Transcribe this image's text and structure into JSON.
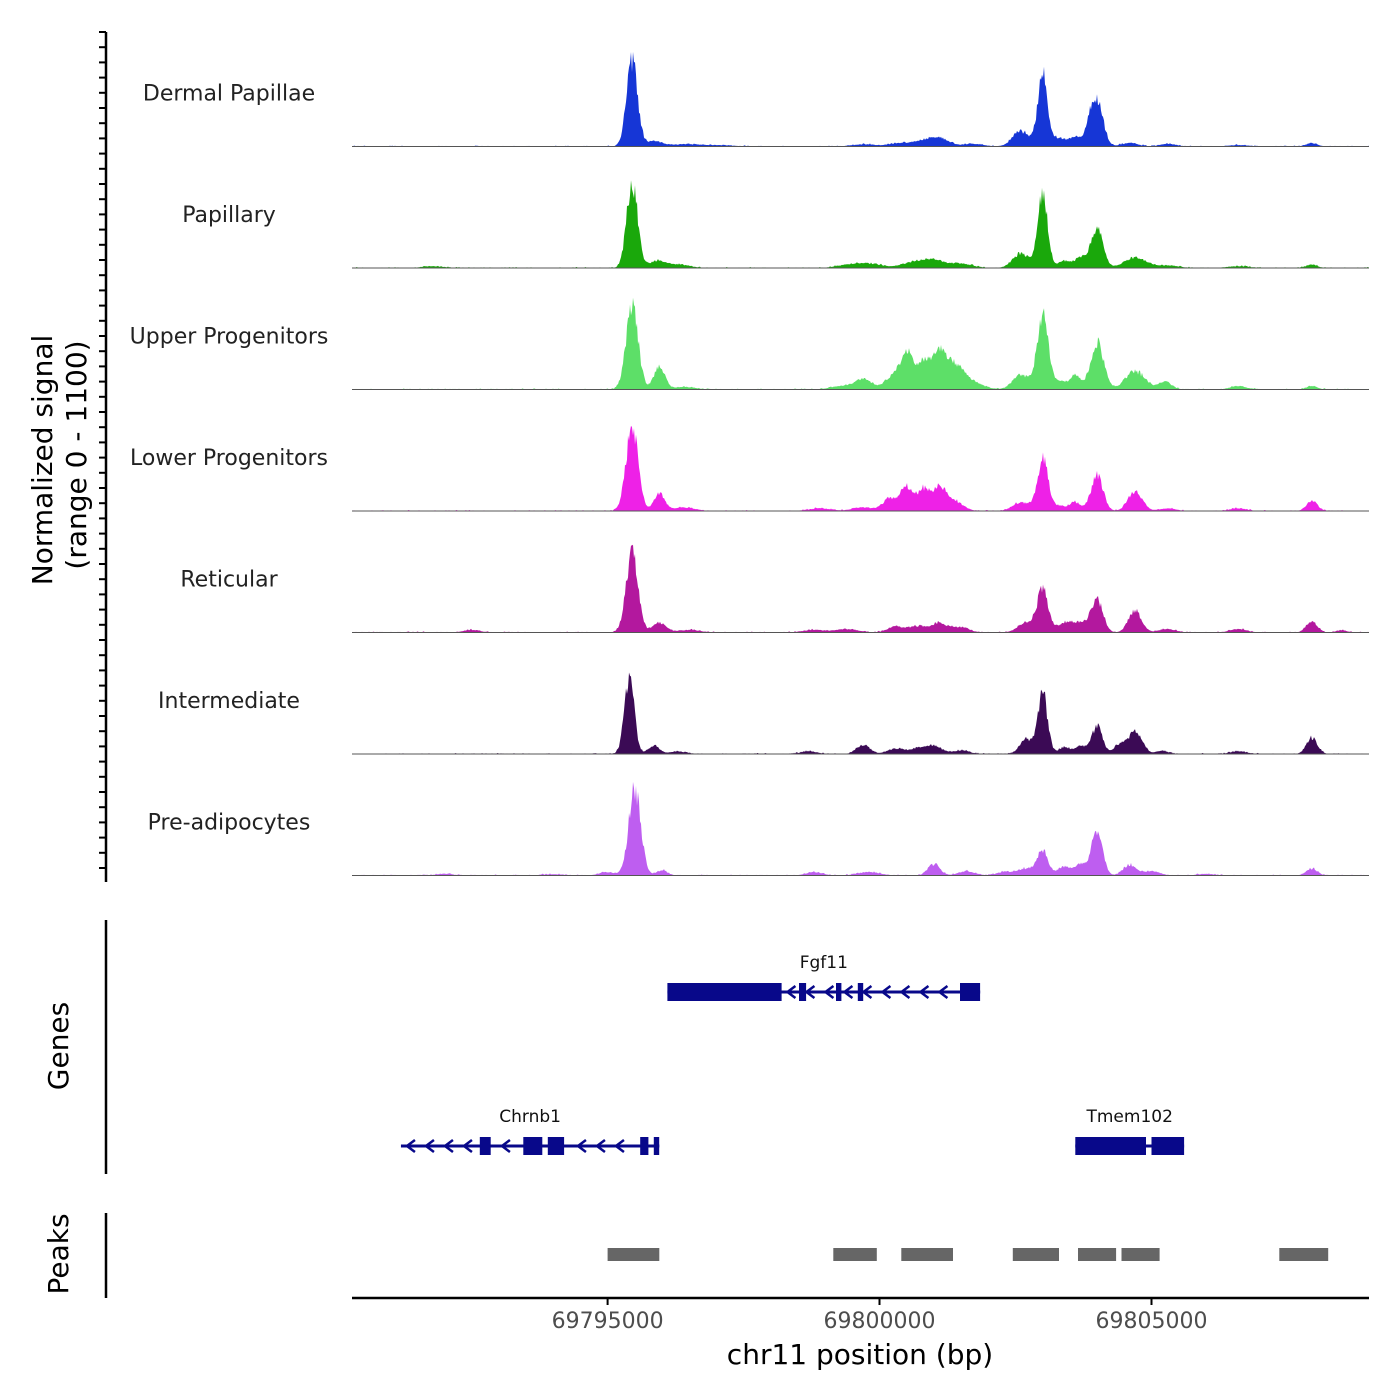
{
  "chart_data": {
    "type": "area",
    "title": "",
    "chromosome": "chr11",
    "xlabel": "chr11 position (bp)",
    "ylabel_line1": "Normalized signal",
    "ylabel_line2": "(range 0 - 1100)",
    "xlim": [
      69790300,
      69809000
    ],
    "ylim": [
      0,
      1100
    ],
    "x_ticks": [
      69795000,
      69800000,
      69805000
    ],
    "x_tick_labels": [
      "69795000",
      "69800000",
      "69805000"
    ],
    "series": [
      {
        "name": "Dermal Papillae",
        "color": "#1636d6",
        "peaks": [
          [
            69795450,
            1000,
            100
          ],
          [
            69795850,
            60,
            150
          ],
          [
            69796400,
            25,
            250
          ],
          [
            69797000,
            15,
            300
          ],
          [
            69799700,
            25,
            200
          ],
          [
            69800400,
            40,
            220
          ],
          [
            69800900,
            80,
            200
          ],
          [
            69801150,
            60,
            150
          ],
          [
            69801700,
            30,
            200
          ],
          [
            69802600,
            180,
            150
          ],
          [
            69803000,
            830,
            90
          ],
          [
            69803300,
            100,
            120
          ],
          [
            69803600,
            110,
            100
          ],
          [
            69803850,
            180,
            80
          ],
          [
            69804000,
            520,
            110
          ],
          [
            69804600,
            40,
            150
          ],
          [
            69805300,
            30,
            150
          ],
          [
            69806600,
            15,
            200
          ],
          [
            69807950,
            40,
            100
          ]
        ]
      },
      {
        "name": "Papillary",
        "color": "#1aa80b",
        "peaks": [
          [
            69795450,
            1000,
            100
          ],
          [
            69795900,
            80,
            150
          ],
          [
            69796300,
            40,
            200
          ],
          [
            69791800,
            20,
            200
          ],
          [
            69799400,
            30,
            200
          ],
          [
            69799800,
            50,
            250
          ],
          [
            69800600,
            60,
            200
          ],
          [
            69801000,
            90,
            200
          ],
          [
            69801500,
            50,
            200
          ],
          [
            69802600,
            170,
            150
          ],
          [
            69803000,
            840,
            90
          ],
          [
            69803400,
            80,
            120
          ],
          [
            69803700,
            120,
            100
          ],
          [
            69804000,
            460,
            110
          ],
          [
            69804700,
            120,
            200
          ],
          [
            69805300,
            30,
            200
          ],
          [
            69806600,
            20,
            200
          ],
          [
            69807950,
            40,
            100
          ]
        ]
      },
      {
        "name": "Upper Progenitors",
        "color": "#5ddf68",
        "peaks": [
          [
            69795450,
            1000,
            110
          ],
          [
            69795950,
            260,
            100
          ],
          [
            69796400,
            30,
            200
          ],
          [
            69799300,
            40,
            200
          ],
          [
            69799700,
            120,
            150
          ],
          [
            69800250,
            150,
            150
          ],
          [
            69800500,
            400,
            110
          ],
          [
            69800800,
            300,
            120
          ],
          [
            69801100,
            430,
            130
          ],
          [
            69801400,
            250,
            150
          ],
          [
            69801700,
            80,
            200
          ],
          [
            69802600,
            170,
            150
          ],
          [
            69803000,
            880,
            100
          ],
          [
            69803300,
            100,
            120
          ],
          [
            69803600,
            160,
            100
          ],
          [
            69804000,
            540,
            120
          ],
          [
            69804700,
            210,
            180
          ],
          [
            69805250,
            90,
            120
          ],
          [
            69806600,
            40,
            150
          ],
          [
            69807950,
            40,
            100
          ]
        ]
      },
      {
        "name": "Lower Progenitors",
        "color": "#ee21e7",
        "peaks": [
          [
            69795450,
            1000,
            110
          ],
          [
            69795950,
            200,
            100
          ],
          [
            69796400,
            40,
            200
          ],
          [
            69798900,
            30,
            200
          ],
          [
            69799700,
            40,
            200
          ],
          [
            69800200,
            150,
            130
          ],
          [
            69800500,
            270,
            110
          ],
          [
            69800800,
            240,
            110
          ],
          [
            69801100,
            270,
            130
          ],
          [
            69801400,
            100,
            150
          ],
          [
            69802600,
            100,
            150
          ],
          [
            69803000,
            600,
            100
          ],
          [
            69803300,
            60,
            120
          ],
          [
            69803600,
            100,
            100
          ],
          [
            69804000,
            420,
            110
          ],
          [
            69804700,
            230,
            130
          ],
          [
            69805300,
            30,
            150
          ],
          [
            69806600,
            30,
            150
          ],
          [
            69807950,
            120,
            100
          ]
        ]
      },
      {
        "name": "Reticular",
        "color": "#b3189e",
        "peaks": [
          [
            69795450,
            900,
            110
          ],
          [
            69795950,
            110,
            120
          ],
          [
            69796500,
            30,
            200
          ],
          [
            69792500,
            30,
            150
          ],
          [
            69798800,
            30,
            200
          ],
          [
            69799400,
            40,
            200
          ],
          [
            69800300,
            70,
            150
          ],
          [
            69800700,
            70,
            150
          ],
          [
            69801100,
            110,
            150
          ],
          [
            69801500,
            60,
            150
          ],
          [
            69802700,
            120,
            150
          ],
          [
            69803000,
            490,
            100
          ],
          [
            69803400,
            100,
            150
          ],
          [
            69803700,
            100,
            150
          ],
          [
            69804000,
            370,
            110
          ],
          [
            69804700,
            250,
            120
          ],
          [
            69805300,
            40,
            150
          ],
          [
            69806600,
            40,
            150
          ],
          [
            69807950,
            130,
            100
          ],
          [
            69808500,
            25,
            100
          ]
        ]
      },
      {
        "name": "Intermediate",
        "color": "#3b0a55",
        "peaks": [
          [
            69795400,
            880,
            90
          ],
          [
            69795850,
            100,
            100
          ],
          [
            69796300,
            30,
            150
          ],
          [
            69798700,
            30,
            150
          ],
          [
            69799700,
            110,
            120
          ],
          [
            69800300,
            60,
            150
          ],
          [
            69800700,
            60,
            150
          ],
          [
            69801000,
            90,
            150
          ],
          [
            69801500,
            40,
            150
          ],
          [
            69802700,
            170,
            120
          ],
          [
            69803000,
            700,
            90
          ],
          [
            69803400,
            80,
            100
          ],
          [
            69803700,
            90,
            100
          ],
          [
            69804000,
            320,
            100
          ],
          [
            69804400,
            100,
            100
          ],
          [
            69804700,
            260,
            130
          ],
          [
            69805200,
            40,
            100
          ],
          [
            69806600,
            30,
            150
          ],
          [
            69807950,
            190,
            100
          ]
        ]
      },
      {
        "name": "Pre-adipocytes",
        "color": "#be5ef0",
        "peaks": [
          [
            69795500,
            1000,
            110
          ],
          [
            69795000,
            40,
            150
          ],
          [
            69796000,
            60,
            100
          ],
          [
            69792000,
            20,
            150
          ],
          [
            69794000,
            15,
            200
          ],
          [
            69798800,
            40,
            150
          ],
          [
            69799800,
            40,
            200
          ],
          [
            69801000,
            130,
            110
          ],
          [
            69801600,
            50,
            150
          ],
          [
            69802300,
            40,
            150
          ],
          [
            69802700,
            80,
            150
          ],
          [
            69803000,
            290,
            100
          ],
          [
            69803400,
            100,
            120
          ],
          [
            69803700,
            130,
            100
          ],
          [
            69804000,
            520,
            100
          ],
          [
            69804600,
            120,
            120
          ],
          [
            69805000,
            50,
            150
          ],
          [
            69806000,
            20,
            150
          ],
          [
            69807950,
            80,
            100
          ]
        ]
      }
    ],
    "genes": [
      {
        "name": "Fgf11",
        "strand": "-",
        "start": 69796100,
        "end": 69801850,
        "exons": [
          [
            69796100,
            69797950
          ],
          [
            69797950,
            69798200
          ],
          [
            69798520,
            69798650
          ],
          [
            69799200,
            69799300
          ],
          [
            69799600,
            69799700
          ],
          [
            69801480,
            69801850
          ]
        ]
      },
      {
        "name": "Chrnb1",
        "strand": "-",
        "start": 69791200,
        "end": 69795950,
        "exons": [
          [
            69792650,
            69792850
          ],
          [
            69793450,
            69793800
          ],
          [
            69793900,
            69794200
          ],
          [
            69795600,
            69795750
          ],
          [
            69795850,
            69795950
          ]
        ]
      },
      {
        "name": "Tmem102",
        "strand": "+",
        "start": 69803600,
        "end": 69805600,
        "exons": [
          [
            69803600,
            69804900
          ],
          [
            69805000,
            69805600
          ]
        ]
      }
    ],
    "genes_label": "Genes",
    "peaks_label": "Peaks",
    "peak_regions": [
      [
        69795000,
        69795950
      ],
      [
        69799150,
        69799950
      ],
      [
        69800400,
        69801350
      ],
      [
        69802450,
        69803300
      ],
      [
        69803650,
        69804350
      ],
      [
        69804450,
        69805150
      ],
      [
        69807350,
        69808250
      ]
    ]
  }
}
